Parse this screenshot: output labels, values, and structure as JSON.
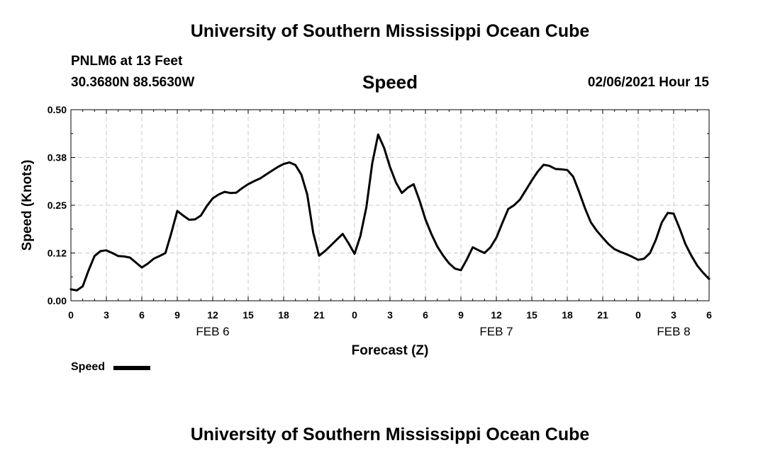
{
  "header": {
    "title": "University of Southern Mississippi Ocean Cube",
    "station": "PNLM6 at 13 Feet",
    "coords": "30.3680N 88.5630W",
    "parameter": "Speed",
    "issued": "02/06/2021 Hour 15"
  },
  "footer": {
    "title": "University of Southern Mississippi Ocean Cube"
  },
  "legend": {
    "label": "Speed",
    "color": "#000000"
  },
  "chart_data": {
    "type": "line",
    "title": "Speed",
    "xlabel": "Forecast (Z)",
    "ylabel": "Speed (Knots)",
    "xlim": [
      0,
      54
    ],
    "ylim": [
      0,
      0.5
    ],
    "grid": true,
    "yticks": [
      "0.00",
      "0.12",
      "0.25",
      "0.38",
      "0.50"
    ],
    "ytick_values": [
      0,
      0.125,
      0.25,
      0.375,
      0.5
    ],
    "xticks": [
      "0",
      "3",
      "6",
      "9",
      "12",
      "15",
      "18",
      "21",
      "0",
      "3",
      "6",
      "9",
      "12",
      "15",
      "18",
      "21",
      "0",
      "3",
      "6"
    ],
    "xtick_values": [
      0,
      3,
      6,
      9,
      12,
      15,
      18,
      21,
      24,
      27,
      30,
      33,
      36,
      39,
      42,
      45,
      48,
      51,
      54
    ],
    "day_labels": [
      {
        "label": "FEB 6",
        "x": 12
      },
      {
        "label": "FEB 7",
        "x": 36
      },
      {
        "label": "FEB 8",
        "x": 51
      }
    ],
    "series": [
      {
        "name": "Speed",
        "color": "#000000",
        "x": [
          0,
          0.5,
          1,
          1.5,
          2,
          2.5,
          3,
          3.5,
          4,
          4.5,
          5,
          5.5,
          6,
          6.5,
          7,
          7.5,
          8,
          8.5,
          9,
          9.5,
          10,
          10.5,
          11,
          11.5,
          12,
          12.5,
          13,
          13.5,
          14,
          14.5,
          15,
          15.5,
          16,
          16.5,
          17,
          17.5,
          18,
          18.5,
          19,
          19.5,
          20,
          20.5,
          21,
          21.5,
          22,
          22.5,
          23,
          23.5,
          24,
          24.5,
          25,
          25.5,
          26,
          26.5,
          27,
          27.5,
          28,
          28.5,
          29,
          29.5,
          30,
          30.5,
          31,
          31.5,
          32,
          32.5,
          33,
          33.5,
          34,
          34.5,
          35,
          35.5,
          36,
          36.5,
          37,
          37.5,
          38,
          38.5,
          39,
          39.5,
          40,
          40.5,
          41,
          41.5,
          42,
          42.5,
          43,
          43.5,
          44,
          44.5,
          45,
          45.5,
          46,
          46.5,
          47,
          47.5,
          48,
          48.5,
          49,
          49.5,
          50,
          50.5,
          51,
          51.5,
          52,
          52.5,
          53,
          53.5,
          54
        ],
        "values": [
          0.03,
          0.027,
          0.038,
          0.08,
          0.117,
          0.13,
          0.132,
          0.125,
          0.117,
          0.116,
          0.113,
          0.1,
          0.087,
          0.097,
          0.11,
          0.117,
          0.125,
          0.178,
          0.235,
          0.223,
          0.212,
          0.213,
          0.223,
          0.248,
          0.268,
          0.278,
          0.285,
          0.282,
          0.283,
          0.295,
          0.305,
          0.313,
          0.32,
          0.33,
          0.34,
          0.35,
          0.358,
          0.362,
          0.355,
          0.33,
          0.278,
          0.178,
          0.118,
          0.13,
          0.145,
          0.16,
          0.175,
          0.15,
          0.123,
          0.17,
          0.245,
          0.36,
          0.435,
          0.4,
          0.35,
          0.31,
          0.282,
          0.296,
          0.305,
          0.262,
          0.213,
          0.175,
          0.142,
          0.118,
          0.098,
          0.084,
          0.08,
          0.108,
          0.14,
          0.132,
          0.125,
          0.14,
          0.165,
          0.203,
          0.24,
          0.25,
          0.265,
          0.29,
          0.315,
          0.338,
          0.356,
          0.353,
          0.345,
          0.344,
          0.342,
          0.325,
          0.285,
          0.242,
          0.205,
          0.183,
          0.165,
          0.148,
          0.135,
          0.128,
          0.122,
          0.115,
          0.107,
          0.11,
          0.125,
          0.16,
          0.205,
          0.23,
          0.228,
          0.19,
          0.148,
          0.118,
          0.092,
          0.073,
          0.057
        ]
      }
    ]
  }
}
